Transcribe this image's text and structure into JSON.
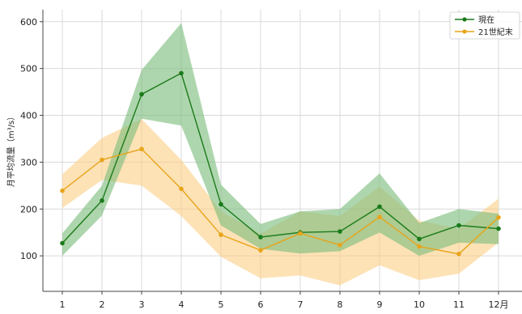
{
  "chart_data": {
    "type": "line",
    "ylabel": "月平均流量（m³/s）",
    "xlim": [
      0.5,
      12.5
    ],
    "ylim": [
      0,
      630
    ],
    "grid": true,
    "legend_position": "top-right",
    "x_tick_labels": [
      "1",
      "2",
      "3",
      "4",
      "5",
      "6",
      "7",
      "8",
      "9",
      "10",
      "11",
      "12月"
    ],
    "y_ticks": [
      100,
      200,
      300,
      400,
      500,
      600
    ],
    "x": [
      1,
      2,
      3,
      4,
      5,
      6,
      7,
      8,
      9,
      10,
      11,
      12
    ],
    "series": [
      {
        "name": "現在",
        "color": "#1a7a1a",
        "band_color": "#7dbd7d",
        "values": [
          127,
          218,
          445,
          490,
          210,
          140,
          150,
          152,
          205,
          136,
          165,
          158
        ],
        "upper": [
          148,
          250,
          497,
          597,
          252,
          168,
          195,
          200,
          276,
          170,
          200,
          190
        ],
        "lower": [
          100,
          186,
          393,
          378,
          165,
          115,
          105,
          110,
          150,
          100,
          128,
          125
        ]
      },
      {
        "name": "21世紀末",
        "color": "#e8a41a",
        "band_color": "#fbcf85",
        "values": [
          239,
          305,
          328,
          243,
          145,
          112,
          148,
          123,
          183,
          120,
          104,
          182
        ],
        "upper": [
          274,
          352,
          392,
          305,
          195,
          147,
          195,
          185,
          248,
          175,
          158,
          222
        ],
        "lower": [
          202,
          262,
          250,
          185,
          98,
          52,
          58,
          37,
          80,
          48,
          62,
          128
        ]
      }
    ]
  }
}
